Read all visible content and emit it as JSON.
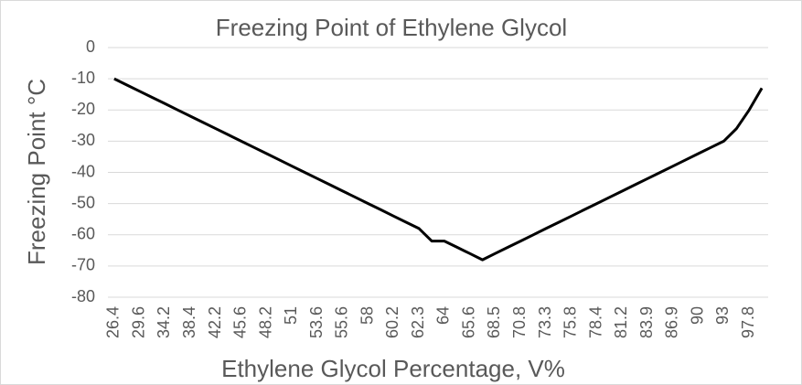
{
  "chart_data": {
    "type": "line",
    "title": "Freezing Point of Ethylene Glycol",
    "x_label": "Ethylene Glycol Percentage, V%",
    "y_label": "Freezing Point °C",
    "categories": [
      "26.4",
      null,
      "29.6",
      null,
      "34.2",
      null,
      "38.4",
      null,
      "42.2",
      null,
      "45.6",
      null,
      "48.2",
      null,
      "51",
      null,
      "53.6",
      null,
      "55.6",
      null,
      "58",
      null,
      "60.2",
      null,
      "62.3",
      null,
      "64",
      null,
      "65.6",
      null,
      "68.5",
      null,
      "70.8",
      null,
      "73.3",
      null,
      "75.8",
      null,
      "78.4",
      null,
      "81.2",
      null,
      "83.9",
      null,
      "86.9",
      null,
      "90",
      null,
      "93",
      null,
      "97.8",
      null
    ],
    "series": [
      {
        "name": "Freezing Point",
        "color": "#000000",
        "values": [
          -10,
          -12,
          -14,
          -16,
          -18,
          -20,
          -22,
          -24,
          -26,
          -28,
          -30,
          -32,
          -34,
          -36,
          -38,
          -40,
          -42,
          -44,
          -46,
          -48,
          -50,
          -52,
          -54,
          -56,
          -58,
          -62,
          -62,
          -64,
          -66,
          -68,
          -66,
          -64,
          -62,
          -60,
          -58,
          -56,
          -54,
          -52,
          -50,
          -48,
          -46,
          -44,
          -42,
          -40,
          -38,
          -36,
          -34,
          -32,
          -30,
          -26,
          -20,
          -13
        ]
      }
    ],
    "ylim": [
      -80,
      0
    ],
    "yticks": [
      -80,
      -70,
      -60,
      -50,
      -40,
      -30,
      -20,
      -10,
      0
    ],
    "grid": true
  }
}
